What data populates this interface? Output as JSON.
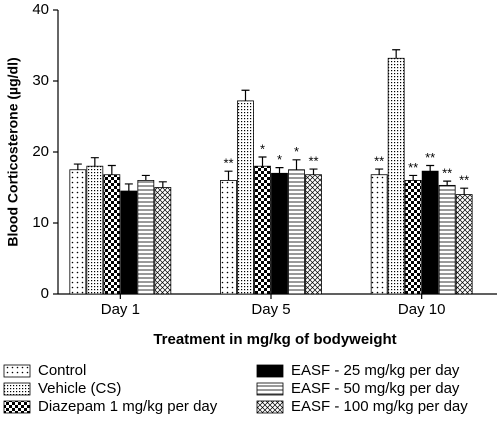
{
  "chart_data": {
    "type": "bar",
    "y_label": "Blood Corticosterone (µg/dl)",
    "x_label": "Treatment in mg/kg of bodyweight",
    "categories": [
      "Day 1",
      "Day 5",
      "Day 10"
    ],
    "ylim": [
      0,
      40
    ],
    "yticks": [
      0,
      10,
      20,
      30,
      40
    ],
    "series": [
      {
        "name": "Control",
        "color": "#000000",
        "pattern": "dots-sparse",
        "values": [
          17.5,
          16,
          16.8
        ],
        "errors": [
          0.8,
          1.3,
          0.8
        ],
        "annotations": [
          null,
          "**",
          "**"
        ]
      },
      {
        "name": "Vehicle (CS)",
        "color": "#000000",
        "pattern": "dots-dense",
        "values": [
          18,
          27.2,
          33.2
        ],
        "errors": [
          1.2,
          1.5,
          1.2
        ],
        "annotations": [
          null,
          null,
          null
        ]
      },
      {
        "name": "Diazepam 1 mg/kg per day",
        "color": "#000000",
        "pattern": "checker",
        "values": [
          16.8,
          18,
          16
        ],
        "errors": [
          1.3,
          1.3,
          0.7
        ],
        "annotations": [
          null,
          "*",
          "**"
        ]
      },
      {
        "name": "EASF - 25 mg/kg per day",
        "color": "#000000",
        "pattern": "solid",
        "values": [
          14.5,
          17,
          17.3
        ],
        "errors": [
          1,
          0.8,
          0.8
        ],
        "annotations": [
          null,
          "*",
          "**"
        ]
      },
      {
        "name": "EASF - 50 mg/kg per day",
        "color": "#000000",
        "pattern": "hlines",
        "values": [
          16,
          17.5,
          15.3
        ],
        "errors": [
          0.7,
          1.4,
          0.6
        ],
        "annotations": [
          null,
          "*",
          "**"
        ]
      },
      {
        "name": "EASF - 100 mg/kg per day",
        "color": "#000000",
        "pattern": "crosshatch",
        "values": [
          15,
          16.8,
          14
        ],
        "errors": [
          0.8,
          0.8,
          0.9
        ],
        "annotations": [
          null,
          "**",
          "**"
        ]
      }
    ]
  }
}
